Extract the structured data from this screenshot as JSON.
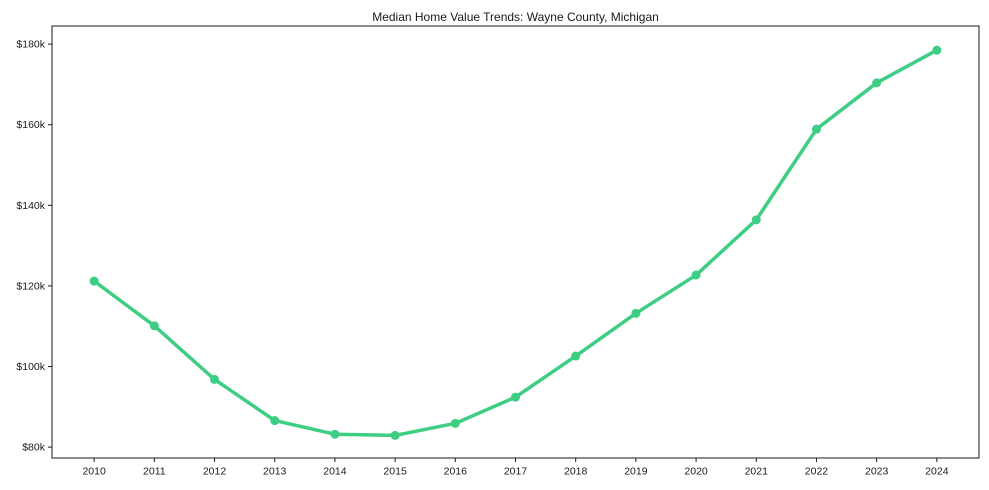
{
  "chart_data": {
    "type": "line",
    "title": "Median Home Value Trends: Wayne County, Michigan",
    "x": [
      2010,
      2011,
      2012,
      2013,
      2014,
      2015,
      2016,
      2017,
      2018,
      2019,
      2020,
      2021,
      2022,
      2023,
      2024
    ],
    "series": [
      {
        "name": "Median Home Value",
        "values": [
          121.2,
          110.1,
          96.8,
          86.6,
          83.2,
          82.9,
          85.9,
          92.4,
          102.6,
          113.2,
          122.7,
          136.4,
          158.9,
          170.4,
          178.5
        ]
      }
    ],
    "unit": "USD thousands",
    "x_tick_labels": [
      "2010",
      "2011",
      "2012",
      "2013",
      "2014",
      "2015",
      "2016",
      "2017",
      "2018",
      "2019",
      "2020",
      "2021",
      "2022",
      "2023",
      "2024"
    ],
    "y_tick_labels": [
      "$80k",
      "$100k",
      "$120k",
      "$140k",
      "$160k",
      "$180k"
    ],
    "y_tick_values": [
      80,
      100,
      120,
      140,
      160,
      180
    ],
    "xlim": [
      2009.3,
      2024.7
    ],
    "ylim": [
      77.3,
      184.5
    ],
    "grid": false,
    "legend": "none",
    "xlabel": "",
    "ylabel": "",
    "line_color": "#3dcd83",
    "marker": "circle",
    "axis_color": "#1a1a1a",
    "text_color": "#1a1a1a",
    "background_color": "#ffffff"
  }
}
